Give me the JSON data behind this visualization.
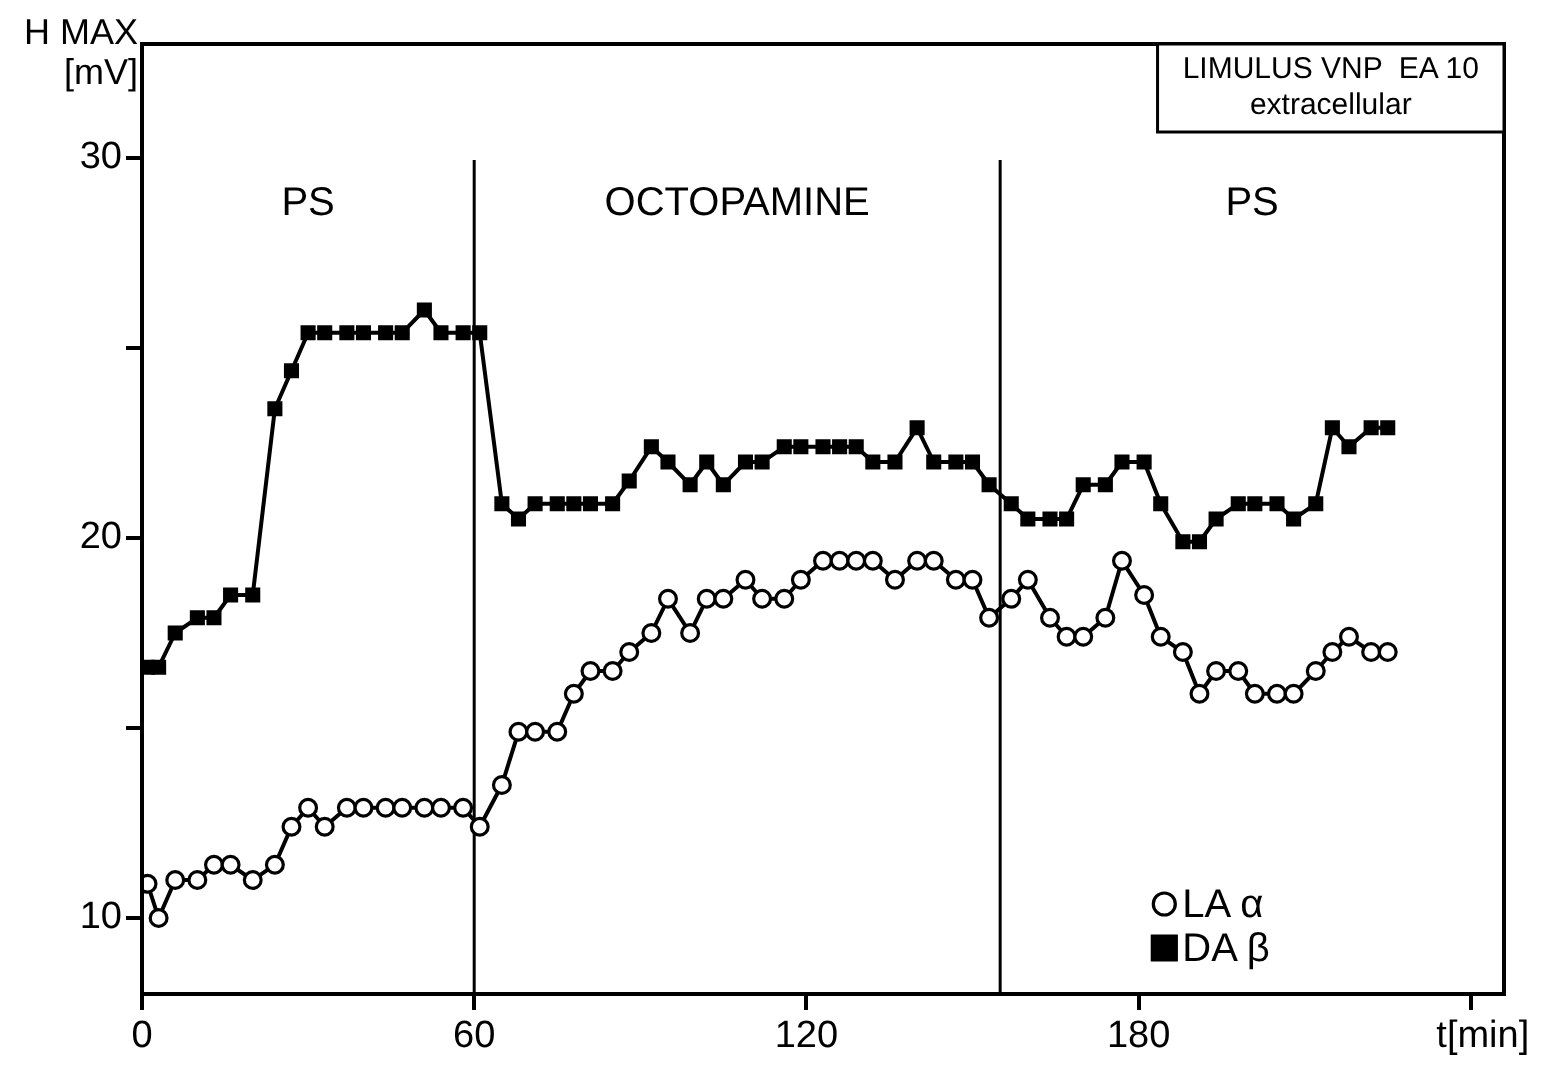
{
  "chart_data": {
    "type": "line",
    "title": "LIMULUS VNP  EA 10",
    "subtitle": "extracellular",
    "ylabel": "H MAX\n[mV]",
    "xlabel": "t[min]",
    "xlim": [
      0,
      246
    ],
    "xticks": [
      0,
      60,
      120,
      180,
      {
        "value": 240,
        "label": null
      }
    ],
    "ylim": [
      8,
      33
    ],
    "yticks": [
      10,
      {
        "value": 15,
        "label": null
      },
      20,
      {
        "value": 25,
        "label": null
      },
      30
    ],
    "grid": false,
    "legend": "bottom right",
    "line_style": "solid",
    "x": [
      1,
      3,
      6,
      10,
      13,
      16,
      20,
      24,
      27,
      30,
      33,
      37,
      40,
      44,
      47,
      51,
      54,
      58,
      61,
      65,
      68,
      71,
      75,
      78,
      81,
      85,
      88,
      92,
      95,
      99,
      102,
      105,
      109,
      112,
      116,
      119,
      123,
      126,
      129,
      132,
      136,
      140,
      143,
      147,
      150,
      153,
      157,
      160,
      164,
      167,
      170,
      174,
      177,
      181,
      184,
      188,
      191,
      194,
      198,
      201,
      205,
      208,
      212,
      215,
      218,
      222,
      225
    ],
    "series": [
      {
        "name": "LA α",
        "color": "#000000",
        "marker": "circle",
        "values": [
          10.9,
          10,
          11,
          11,
          11.4,
          11.4,
          11,
          11.4,
          12.4,
          12.9,
          12.4,
          12.9,
          12.9,
          12.9,
          12.9,
          12.9,
          12.9,
          12.9,
          12.4,
          13.5,
          14.9,
          14.9,
          14.9,
          15.9,
          16.5,
          16.5,
          17,
          17.5,
          18.4,
          17.5,
          18.4,
          18.4,
          18.9,
          18.4,
          18.4,
          18.9,
          19.4,
          19.4,
          19.4,
          19.4,
          18.9,
          19.4,
          19.4,
          18.9,
          18.9,
          17.9,
          18.4,
          18.9,
          17.9,
          17.4,
          17.4,
          17.9,
          19.4,
          18.5,
          17.4,
          17,
          15.9,
          16.5,
          16.5,
          15.9,
          15.9,
          15.9,
          16.5,
          17,
          17.4,
          17,
          17
        ]
      },
      {
        "name": "DA β",
        "color": "#000000",
        "marker": "square",
        "values": [
          16.6,
          16.6,
          17.5,
          17.9,
          17.9,
          18.5,
          18.5,
          23.4,
          24.4,
          25.4,
          25.4,
          25.4,
          25.4,
          25.4,
          25.4,
          26,
          25.4,
          25.4,
          25.4,
          20.9,
          20.5,
          20.9,
          20.9,
          20.9,
          20.9,
          20.9,
          21.5,
          22.4,
          22,
          21.4,
          22,
          21.4,
          22,
          22,
          22.4,
          22.4,
          22.4,
          22.4,
          22.4,
          22,
          22,
          22.9,
          22,
          22,
          22,
          21.4,
          20.9,
          20.5,
          20.5,
          20.5,
          21.4,
          21.4,
          22,
          22,
          20.9,
          19.9,
          19.9,
          20.5,
          20.9,
          20.9,
          20.9,
          20.5,
          20.9,
          22.9,
          22.4,
          22.9,
          22.9
        ]
      }
    ],
    "ref_lines": [
      {
        "axis": "x",
        "value": 60
      },
      {
        "axis": "x",
        "value": 155
      }
    ],
    "annotations": [
      "PS",
      "OCTOPAMINE",
      "PS"
    ]
  }
}
